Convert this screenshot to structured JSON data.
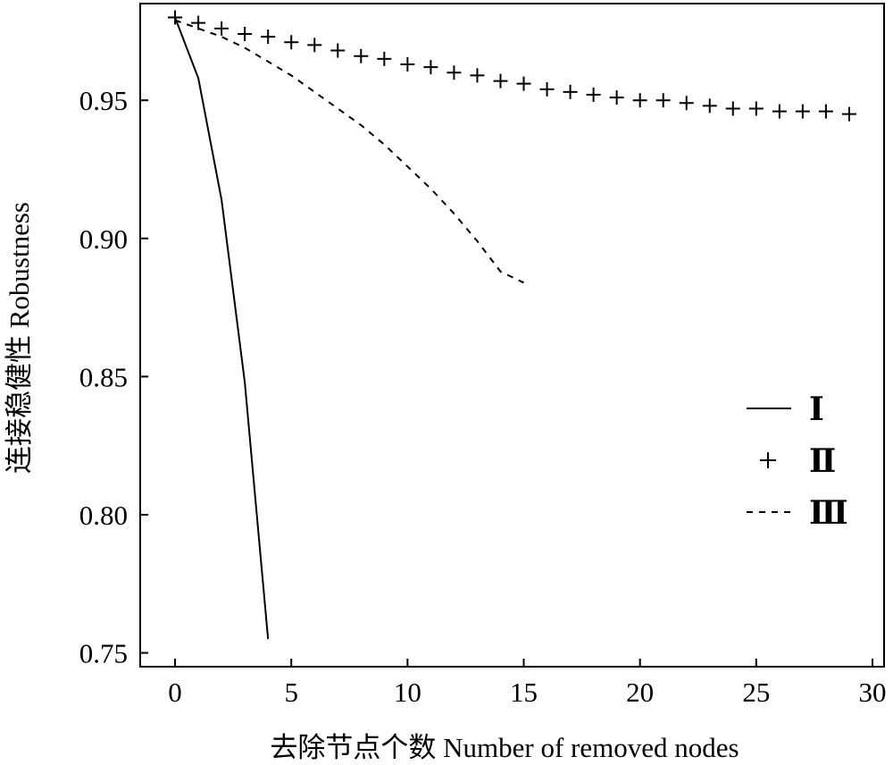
{
  "chart_data": {
    "type": "line",
    "title": "",
    "xlabel": "去除节点个数 Number of removed nodes",
    "ylabel": "连接稳健性 Robustness",
    "xlim": [
      -1.5,
      30.5
    ],
    "ylim": [
      0.745,
      0.985
    ],
    "x_ticks": [
      {
        "value": 0,
        "label": "0"
      },
      {
        "value": 5,
        "label": "5"
      },
      {
        "value": 10,
        "label": "10"
      },
      {
        "value": 15,
        "label": "15"
      },
      {
        "value": 20,
        "label": "20"
      },
      {
        "value": 25,
        "label": "25"
      },
      {
        "value": 30,
        "label": "30"
      }
    ],
    "y_ticks": [
      {
        "value": 0.75,
        "label": "0.75"
      },
      {
        "value": 0.8,
        "label": "0.80"
      },
      {
        "value": 0.85,
        "label": "0.85"
      },
      {
        "value": 0.9,
        "label": "0.90"
      },
      {
        "value": 0.95,
        "label": "0.95"
      }
    ],
    "grid": false,
    "legend_position": "right",
    "series": [
      {
        "name": "Ⅰ",
        "style": "solid",
        "color": "#000000",
        "x": [
          0,
          1,
          2,
          3,
          4
        ],
        "y": [
          0.98,
          0.958,
          0.914,
          0.848,
          0.755
        ]
      },
      {
        "name": "Ⅱ",
        "style": "plus-markers",
        "color": "#000000",
        "x": [
          0,
          1,
          2,
          3,
          4,
          5,
          6,
          7,
          8,
          9,
          10,
          11,
          12,
          13,
          14,
          15,
          16,
          17,
          18,
          19,
          20,
          21,
          22,
          23,
          24,
          25,
          26,
          27,
          28,
          29
        ],
        "y": [
          0.98,
          0.978,
          0.976,
          0.974,
          0.973,
          0.971,
          0.97,
          0.968,
          0.966,
          0.965,
          0.963,
          0.962,
          0.96,
          0.959,
          0.957,
          0.956,
          0.954,
          0.953,
          0.952,
          0.951,
          0.95,
          0.95,
          0.949,
          0.948,
          0.947,
          0.947,
          0.946,
          0.946,
          0.946,
          0.945
        ]
      },
      {
        "name": "Ⅲ",
        "style": "dashed",
        "color": "#000000",
        "x": [
          0,
          1,
          2,
          3,
          4,
          5,
          6,
          7,
          8,
          9,
          10,
          11,
          12,
          13,
          14,
          15
        ],
        "y": [
          0.979,
          0.976,
          0.973,
          0.969,
          0.964,
          0.959,
          0.953,
          0.947,
          0.941,
          0.934,
          0.926,
          0.918,
          0.909,
          0.899,
          0.888,
          0.884
        ]
      }
    ]
  }
}
